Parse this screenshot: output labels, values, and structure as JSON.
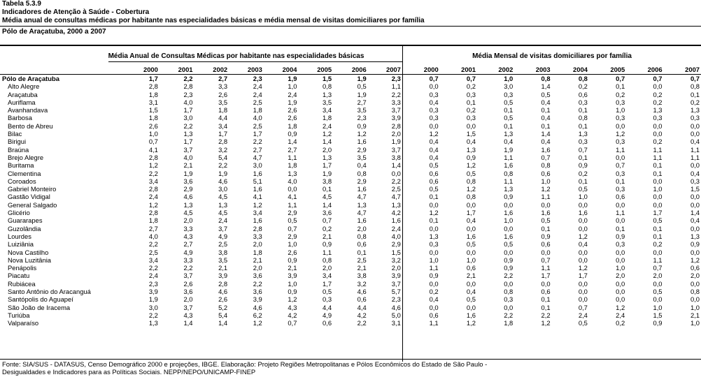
{
  "header": {
    "table_number": "Tabela 5.3.9",
    "title": "Indicadores de Atenção à Saúde - Cobertura",
    "subtitle": "Média anual de consultas médicas por habitante nas especialidades básicas e média mensal de visitas domiciliares por família",
    "region_period": "Pólo de Araçatuba, 2000 a 2007"
  },
  "groups": {
    "consultas": "Média Anual de Consultas Médicas por habitante nas especialidades básicas",
    "visitas": "Média Mensal de visitas domiciliares por família"
  },
  "years": [
    "2000",
    "2001",
    "2002",
    "2003",
    "2004",
    "2005",
    "2006",
    "2007"
  ],
  "rows": [
    {
      "name": "Pólo de Araçatuba",
      "total": true,
      "c": [
        "1,7",
        "2,2",
        "2,7",
        "2,3",
        "1,9",
        "1,5",
        "1,9",
        "2,3"
      ],
      "v": [
        "0,7",
        "0,7",
        "1,0",
        "0,8",
        "0,8",
        "0,7",
        "0,7",
        "0,7"
      ]
    },
    {
      "name": "Alto Alegre",
      "c": [
        "2,8",
        "2,8",
        "3,3",
        "2,4",
        "1,0",
        "0,8",
        "0,5",
        "1,1"
      ],
      "v": [
        "0,0",
        "0,2",
        "3,0",
        "1,4",
        "0,2",
        "0,1",
        "0,0",
        "0,8"
      ]
    },
    {
      "name": "Araçatuba",
      "c": [
        "1,8",
        "2,3",
        "2,6",
        "2,4",
        "2,4",
        "1,3",
        "1,9",
        "2,2"
      ],
      "v": [
        "0,3",
        "0,3",
        "0,3",
        "0,5",
        "0,6",
        "0,2",
        "0,2",
        "0,1"
      ]
    },
    {
      "name": "Auriflama",
      "c": [
        "3,1",
        "4,0",
        "3,5",
        "2,5",
        "1,9",
        "3,5",
        "2,7",
        "3,3"
      ],
      "v": [
        "0,4",
        "0,1",
        "0,5",
        "0,4",
        "0,3",
        "0,3",
        "0,2",
        "0,2"
      ]
    },
    {
      "name": "Avanhandava",
      "c": [
        "1,5",
        "1,7",
        "1,8",
        "1,8",
        "2,6",
        "3,4",
        "3,5",
        "3,7"
      ],
      "v": [
        "0,3",
        "0,2",
        "0,1",
        "0,1",
        "0,1",
        "1,0",
        "1,3",
        "1,3"
      ]
    },
    {
      "name": "Barbosa",
      "c": [
        "1,8",
        "3,0",
        "4,4",
        "4,0",
        "2,6",
        "1,8",
        "2,3",
        "3,9"
      ],
      "v": [
        "0,3",
        "0,3",
        "0,5",
        "0,4",
        "0,8",
        "0,3",
        "0,3",
        "0,3"
      ]
    },
    {
      "name": "Bento de Abreu",
      "c": [
        "2,6",
        "2,2",
        "3,4",
        "2,5",
        "1,8",
        "2,4",
        "0,9",
        "2,8"
      ],
      "v": [
        "0,0",
        "0,0",
        "0,1",
        "0,1",
        "0,1",
        "0,0",
        "0,0",
        "0,0"
      ]
    },
    {
      "name": "Bilac",
      "c": [
        "1,0",
        "1,3",
        "1,7",
        "1,7",
        "0,9",
        "1,2",
        "1,2",
        "2,0"
      ],
      "v": [
        "1,2",
        "1,5",
        "1,3",
        "1,4",
        "1,3",
        "1,2",
        "0,0",
        "0,0"
      ]
    },
    {
      "name": "Birigui",
      "c": [
        "0,7",
        "1,7",
        "2,8",
        "2,2",
        "1,4",
        "1,4",
        "1,6",
        "1,9"
      ],
      "v": [
        "0,4",
        "0,4",
        "0,4",
        "0,4",
        "0,3",
        "0,3",
        "0,2",
        "0,4"
      ]
    },
    {
      "name": "Braúna",
      "c": [
        "4,1",
        "3,7",
        "3,2",
        "2,7",
        "2,7",
        "2,0",
        "2,9",
        "3,7"
      ],
      "v": [
        "0,4",
        "1,3",
        "1,9",
        "1,6",
        "0,7",
        "1,1",
        "1,1",
        "1,1"
      ]
    },
    {
      "name": "Brejo Alegre",
      "c": [
        "2,8",
        "4,0",
        "5,4",
        "4,7",
        "1,1",
        "1,3",
        "3,5",
        "3,8"
      ],
      "v": [
        "0,4",
        "0,9",
        "1,1",
        "0,7",
        "0,1",
        "0,0",
        "1,1",
        "1,1"
      ]
    },
    {
      "name": "Buritama",
      "c": [
        "1,2",
        "2,1",
        "2,2",
        "3,0",
        "1,8",
        "1,7",
        "0,4",
        "1,4"
      ],
      "v": [
        "0,5",
        "1,2",
        "1,6",
        "0,8",
        "0,9",
        "0,7",
        "0,1",
        "0,0"
      ]
    },
    {
      "name": "Clementina",
      "c": [
        "2,2",
        "1,9",
        "1,9",
        "1,6",
        "1,3",
        "1,9",
        "0,8",
        "0,0"
      ],
      "v": [
        "0,6",
        "0,5",
        "0,8",
        "0,6",
        "0,2",
        "0,3",
        "0,1",
        "0,4"
      ]
    },
    {
      "name": "Coroados",
      "c": [
        "3,4",
        "3,6",
        "4,6",
        "5,1",
        "4,0",
        "3,8",
        "2,9",
        "2,2"
      ],
      "v": [
        "0,6",
        "0,8",
        "1,1",
        "1,0",
        "0,1",
        "0,1",
        "0,0",
        "0,3"
      ]
    },
    {
      "name": "Gabriel Monteiro",
      "c": [
        "2,8",
        "2,9",
        "3,0",
        "1,6",
        "0,0",
        "0,1",
        "1,6",
        "2,5"
      ],
      "v": [
        "0,5",
        "1,2",
        "1,3",
        "1,2",
        "0,5",
        "0,3",
        "1,0",
        "1,5"
      ]
    },
    {
      "name": "Gastão Vidigal",
      "c": [
        "2,4",
        "4,6",
        "4,5",
        "4,1",
        "4,1",
        "4,5",
        "4,7",
        "4,7"
      ],
      "v": [
        "0,1",
        "0,8",
        "0,9",
        "1,1",
        "1,0",
        "0,6",
        "0,0",
        "0,0"
      ]
    },
    {
      "name": "General Salgado",
      "c": [
        "1,2",
        "1,3",
        "1,3",
        "1,2",
        "1,1",
        "1,4",
        "1,3",
        "1,3"
      ],
      "v": [
        "0,0",
        "0,0",
        "0,0",
        "0,0",
        "0,0",
        "0,0",
        "0,0",
        "0,0"
      ]
    },
    {
      "name": "Glicério",
      "c": [
        "2,8",
        "4,5",
        "4,5",
        "3,4",
        "2,9",
        "3,6",
        "4,7",
        "4,2"
      ],
      "v": [
        "1,2",
        "1,7",
        "1,6",
        "1,6",
        "1,6",
        "1,1",
        "1,7",
        "1,4"
      ]
    },
    {
      "name": "Guararapes",
      "c": [
        "1,8",
        "2,0",
        "2,4",
        "1,6",
        "0,5",
        "0,7",
        "1,6",
        "1,6"
      ],
      "v": [
        "0,1",
        "0,4",
        "1,0",
        "0,5",
        "0,0",
        "0,0",
        "0,5",
        "0,4"
      ]
    },
    {
      "name": "Guzolândia",
      "c": [
        "2,7",
        "3,3",
        "3,7",
        "2,8",
        "0,7",
        "0,2",
        "2,0",
        "2,4"
      ],
      "v": [
        "0,0",
        "0,0",
        "0,0",
        "0,1",
        "0,0",
        "0,1",
        "0,1",
        "0,0"
      ]
    },
    {
      "name": "Lourdes",
      "c": [
        "4,0",
        "4,3",
        "4,9",
        "3,3",
        "2,9",
        "2,1",
        "0,8",
        "4,0"
      ],
      "v": [
        "1,3",
        "1,6",
        "1,6",
        "0,9",
        "1,2",
        "0,9",
        "0,1",
        "1,3"
      ]
    },
    {
      "name": "Luiziânia",
      "c": [
        "2,2",
        "2,7",
        "2,5",
        "2,0",
        "1,0",
        "0,9",
        "0,6",
        "2,9"
      ],
      "v": [
        "0,3",
        "0,5",
        "0,5",
        "0,6",
        "0,4",
        "0,3",
        "0,2",
        "0,9"
      ]
    },
    {
      "name": "Nova Castilho",
      "c": [
        "2,5",
        "4,9",
        "3,8",
        "1,8",
        "2,6",
        "1,1",
        "0,1",
        "1,5"
      ],
      "v": [
        "0,0",
        "0,0",
        "0,0",
        "0,0",
        "0,0",
        "0,0",
        "0,0",
        "0,0"
      ]
    },
    {
      "name": "Nova Luzitânia",
      "c": [
        "3,4",
        "3,3",
        "3,5",
        "2,1",
        "0,9",
        "0,8",
        "2,5",
        "3,2"
      ],
      "v": [
        "1,0",
        "1,0",
        "0,9",
        "0,7",
        "0,0",
        "0,0",
        "1,1",
        "1,2"
      ]
    },
    {
      "name": "Penápolis",
      "c": [
        "2,2",
        "2,2",
        "2,1",
        "2,0",
        "2,1",
        "2,0",
        "2,1",
        "2,0"
      ],
      "v": [
        "1,1",
        "0,6",
        "0,9",
        "1,1",
        "1,2",
        "1,0",
        "0,7",
        "0,6"
      ]
    },
    {
      "name": "Piacatu",
      "c": [
        "2,4",
        "3,7",
        "3,9",
        "3,6",
        "3,9",
        "3,4",
        "3,8",
        "3,9"
      ],
      "v": [
        "0,9",
        "2,1",
        "2,2",
        "1,7",
        "1,7",
        "2,0",
        "2,0",
        "2,0"
      ]
    },
    {
      "name": "Rubiácea",
      "c": [
        "2,3",
        "2,6",
        "2,8",
        "2,2",
        "1,0",
        "1,7",
        "3,2",
        "3,7"
      ],
      "v": [
        "0,0",
        "0,0",
        "0,0",
        "0,0",
        "0,0",
        "0,0",
        "0,0",
        "0,0"
      ]
    },
    {
      "name": "Santo Antônio do Aracanguá",
      "c": [
        "3,9",
        "3,6",
        "4,6",
        "3,6",
        "0,9",
        "0,5",
        "4,6",
        "5,7"
      ],
      "v": [
        "0,2",
        "0,4",
        "0,8",
        "0,6",
        "0,0",
        "0,0",
        "0,5",
        "0,8"
      ]
    },
    {
      "name": "Santópolis do Aguapeí",
      "c": [
        "1,9",
        "2,0",
        "2,6",
        "3,9",
        "1,2",
        "0,3",
        "0,6",
        "2,3"
      ],
      "v": [
        "0,4",
        "0,5",
        "0,3",
        "0,1",
        "0,0",
        "0,0",
        "0,0",
        "0,0"
      ]
    },
    {
      "name": "São João de Iracema",
      "c": [
        "3,0",
        "3,7",
        "5,2",
        "4,6",
        "4,3",
        "4,4",
        "4,4",
        "4,6"
      ],
      "v": [
        "0,0",
        "0,0",
        "0,0",
        "0,1",
        "0,7",
        "1,2",
        "1,0",
        "1,0"
      ]
    },
    {
      "name": "Turiúba",
      "c": [
        "2,2",
        "4,3",
        "5,4",
        "6,2",
        "4,2",
        "4,9",
        "4,2",
        "5,0"
      ],
      "v": [
        "0,6",
        "1,6",
        "2,2",
        "2,2",
        "2,4",
        "2,4",
        "1,5",
        "2,1"
      ]
    },
    {
      "name": "Valparaíso",
      "c": [
        "1,3",
        "1,4",
        "1,4",
        "1,2",
        "0,7",
        "0,6",
        "2,2",
        "3,1"
      ],
      "v": [
        "1,1",
        "1,2",
        "1,8",
        "1,2",
        "0,5",
        "0,2",
        "0,9",
        "1,0"
      ]
    }
  ],
  "footer": {
    "line1": "Fonte: SIA/SUS - DATASUS, Censo Demográfico 2000 e projeções, IBGE.  Elaboração: Projeto Regiões Metropolitanas e Pólos Econômicos do Estado de São Paulo -",
    "line2": "Desigualdades e Indicadores para as Políticas Sociais. NEPP/NEPO/UNICAMP-FINEP"
  }
}
